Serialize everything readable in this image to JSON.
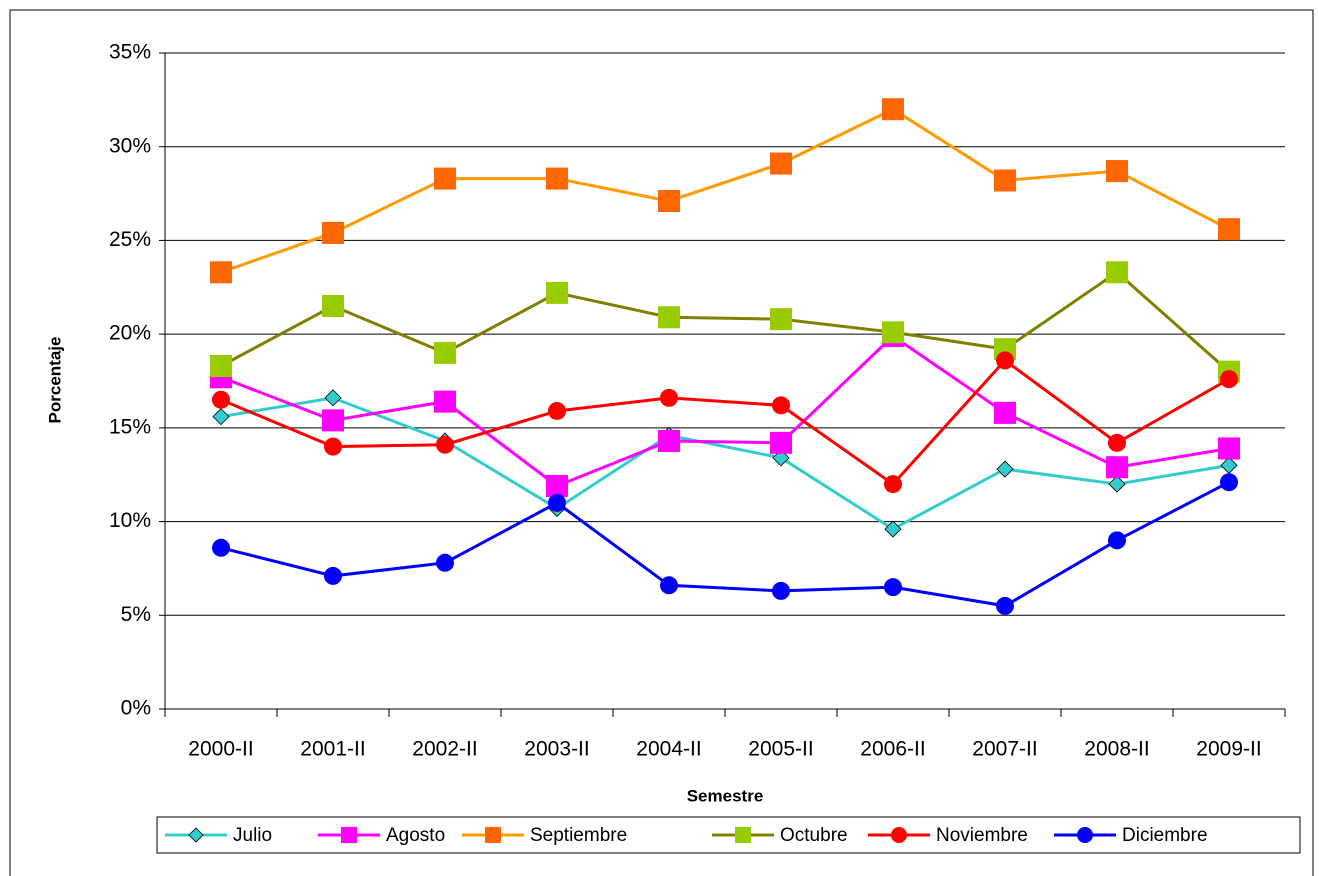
{
  "chart_data": {
    "type": "line",
    "x_label": "Semestre",
    "y_label": "Porcentaje",
    "categories": [
      "2000-II",
      "2001-II",
      "2002-II",
      "2003-II",
      "2004-II",
      "2005-II",
      "2006-II",
      "2007-II",
      "2008-II",
      "2009-II"
    ],
    "series": [
      {
        "name": "Julio",
        "color": "#33cccc",
        "marker_color": "#33cccc",
        "marker": "diamond",
        "values": [
          15.6,
          16.6,
          14.3,
          10.7,
          14.6,
          13.4,
          9.6,
          12.8,
          12.0,
          13.0
        ]
      },
      {
        "name": "Agosto",
        "color": "#ff00ff",
        "marker_color": "#ff00ff",
        "marker": "square",
        "values": [
          17.7,
          15.4,
          16.4,
          11.9,
          14.3,
          14.2,
          19.9,
          15.8,
          12.9,
          13.9
        ]
      },
      {
        "name": "Septiembre",
        "color": "#ff9900",
        "marker_color": "#ff6600",
        "marker": "square",
        "values": [
          23.3,
          25.4,
          28.3,
          28.3,
          27.1,
          29.1,
          32.0,
          28.2,
          28.7,
          25.6
        ]
      },
      {
        "name": "Octubre",
        "color": "#808000",
        "marker_color": "#99cc00",
        "marker": "square",
        "values": [
          18.3,
          21.5,
          19.0,
          22.2,
          20.9,
          20.8,
          20.1,
          19.2,
          23.3,
          18.0
        ]
      },
      {
        "name": "Noviembre",
        "color": "#ff0000",
        "marker_color": "#ff0000",
        "marker": "circle",
        "values": [
          16.5,
          14.0,
          14.1,
          15.9,
          16.6,
          16.2,
          12.0,
          18.6,
          14.2,
          17.6
        ]
      },
      {
        "name": "Diciembre",
        "color": "#0000ff",
        "marker_color": "#0000ff",
        "marker": "circle",
        "values": [
          8.6,
          7.1,
          7.8,
          11.0,
          6.6,
          6.3,
          6.5,
          5.5,
          9.0,
          12.1
        ]
      }
    ],
    "ylim": [
      0,
      35
    ],
    "yticks": [
      {
        "value": 0,
        "label": "0%"
      },
      {
        "value": 5,
        "label": "5%"
      },
      {
        "value": 10,
        "label": "10%"
      },
      {
        "value": 15,
        "label": "15%"
      },
      {
        "value": 20,
        "label": "20%"
      },
      {
        "value": 25,
        "label": "25%"
      },
      {
        "value": 30,
        "label": "30%"
      },
      {
        "value": 35,
        "label": "35%"
      }
    ],
    "grid": true,
    "legend": "bottom"
  }
}
